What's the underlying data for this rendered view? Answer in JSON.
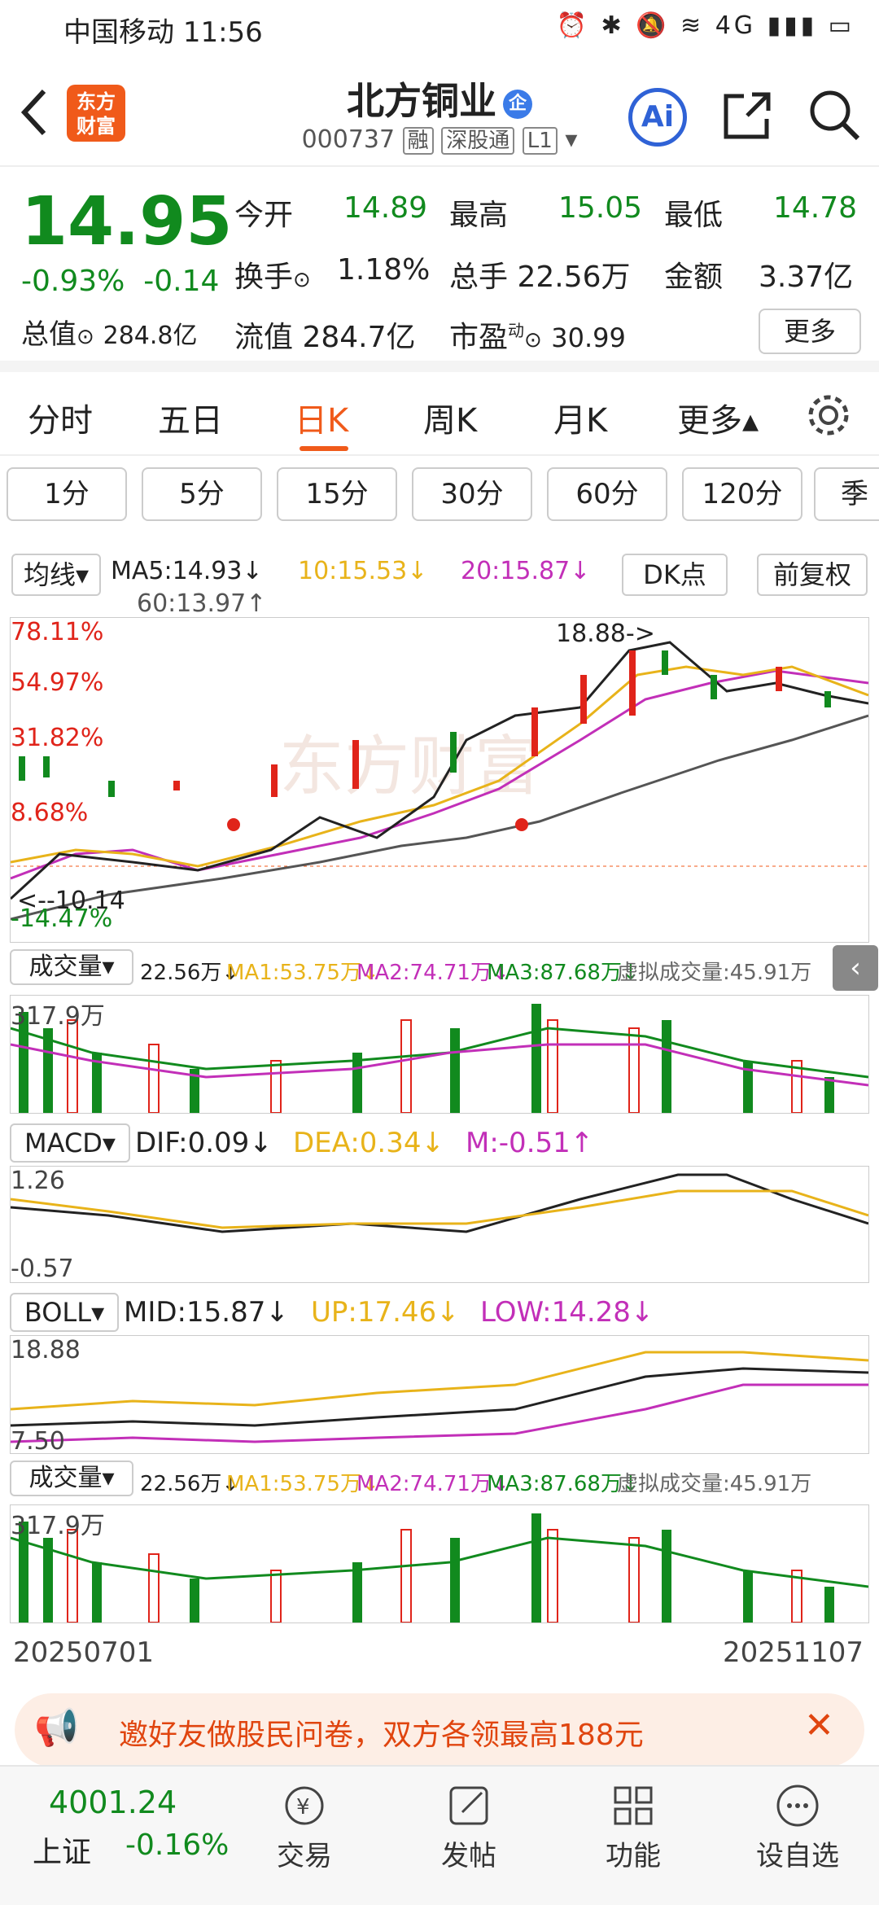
{
  "status": {
    "carrier": "中国移动",
    "time": "11:56",
    "right": "⏰ ✱ 🔕 ≋ 4G ▮▮▮ ▭"
  },
  "header": {
    "title": "北方铜业",
    "title_badge": "企",
    "code": "000737",
    "tag1": "融",
    "tag2": "深股通",
    "tag3": "L1",
    "logo_l1": "东方",
    "logo_l2": "财富",
    "ai": "Ai"
  },
  "quote": {
    "price": "14.95",
    "pct": "-0.93%",
    "chg": "-0.14",
    "open_lbl": "今开",
    "open": "14.89",
    "high_lbl": "最高",
    "high": "15.05",
    "low_lbl": "最低",
    "low": "14.78",
    "turn_lbl": "换手",
    "turn": "1.18%",
    "vol_lbl": "总手",
    "vol": "22.56万",
    "amt_lbl": "金额",
    "amt": "3.37亿",
    "mcap_lbl": "总值",
    "mcap": "284.8亿",
    "fmcap_lbl": "流值",
    "fmcap": "284.7亿",
    "pe_lbl": "市盈",
    "pe_sup": "动",
    "pe": "30.99",
    "more": "更多"
  },
  "tabs": [
    "分时",
    "五日",
    "日K",
    "周K",
    "月K",
    "更多▴"
  ],
  "periods": [
    "1分",
    "5分",
    "15分",
    "30分",
    "60分",
    "120分",
    "季"
  ],
  "ma": {
    "sel": "均线",
    "ma5": "MA5:14.93↓",
    "ma10": "10:15.53↓",
    "ma20": "20:15.87↓",
    "ma60": "60:13.97↑",
    "dk": "DK点",
    "fq": "前复权"
  },
  "kline": {
    "p1": "78.11%",
    "p2": "54.97%",
    "p3": "31.82%",
    "p4": "8.68%",
    "p5": "-14.47%",
    "hi": "18.88->",
    "lo": "<--10.14",
    "wm": "东方财富"
  },
  "vol1": {
    "sel": "成交量",
    "v": "22.56万↓",
    "ma1": "MA1:53.75万↓",
    "ma2": "MA2:74.71万↓",
    "ma3": "MA3:87.68万↓",
    "virt": "虚拟成交量:45.91万",
    "max": "317.9万"
  },
  "macd": {
    "sel": "MACD",
    "dif": "DIF:0.09↓",
    "dea": "DEA:0.34↓",
    "m": "M:-0.51↑",
    "hi": "1.26",
    "lo": "-0.57"
  },
  "boll": {
    "sel": "BOLL",
    "mid": "MID:15.87↓",
    "up": "UP:17.46↓",
    "low": "LOW:14.28↓",
    "hi": "18.88",
    "lo": "7.50"
  },
  "dates": {
    "start": "20250701",
    "end": "20251107"
  },
  "banner": {
    "text": "邀好友做股民问卷，双方各领最高188元"
  },
  "bottom": {
    "index_val": "4001.24",
    "index_name": "上证",
    "index_pct": "-0.16%",
    "items": [
      "交易",
      "发帖",
      "功能",
      "设自选"
    ]
  },
  "colors": {
    "up": "#e0241a",
    "down": "#118a1e",
    "accent": "#f05a1a",
    "ma10": "#e8b31a",
    "ma20": "#c22fb8"
  }
}
